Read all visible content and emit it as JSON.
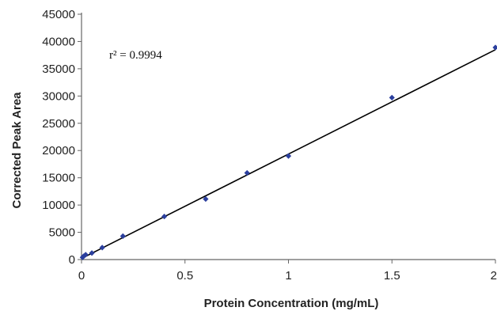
{
  "chart_data": {
    "type": "scatter",
    "xlabel": "Protein Concentration (mg/mL)",
    "ylabel": "Corrected Peak Area",
    "annotation": "r² = 0.9994",
    "xlim": [
      0,
      2
    ],
    "ylim": [
      0,
      45000
    ],
    "xticks": [
      0,
      0.5,
      1,
      1.5,
      2
    ],
    "xtick_labels": [
      "0",
      "0.5",
      "1",
      "1.5",
      "2"
    ],
    "yticks": [
      0,
      5000,
      10000,
      15000,
      20000,
      25000,
      30000,
      35000,
      40000,
      45000
    ],
    "ytick_labels": [
      "0",
      "5000",
      "10000",
      "15000",
      "20000",
      "25000",
      "30000",
      "35000",
      "40000",
      "45000"
    ],
    "grid": false,
    "series": [
      {
        "points": [
          {
            "x": 0.005,
            "y": 400
          },
          {
            "x": 0.01,
            "y": 600
          },
          {
            "x": 0.02,
            "y": 900
          },
          {
            "x": 0.05,
            "y": 1200
          },
          {
            "x": 0.1,
            "y": 2200
          },
          {
            "x": 0.2,
            "y": 4300
          },
          {
            "x": 0.4,
            "y": 7900
          },
          {
            "x": 0.6,
            "y": 11100
          },
          {
            "x": 0.8,
            "y": 15900
          },
          {
            "x": 1.0,
            "y": 19000
          },
          {
            "x": 1.5,
            "y": 29700
          },
          {
            "x": 2.0,
            "y": 38900
          }
        ]
      }
    ],
    "trendline": {
      "x": [
        0,
        2
      ],
      "y": [
        200,
        38500
      ]
    },
    "colors": {
      "marker": "#2b3f9e",
      "trendline": "#000000",
      "axis": "#666666"
    }
  }
}
